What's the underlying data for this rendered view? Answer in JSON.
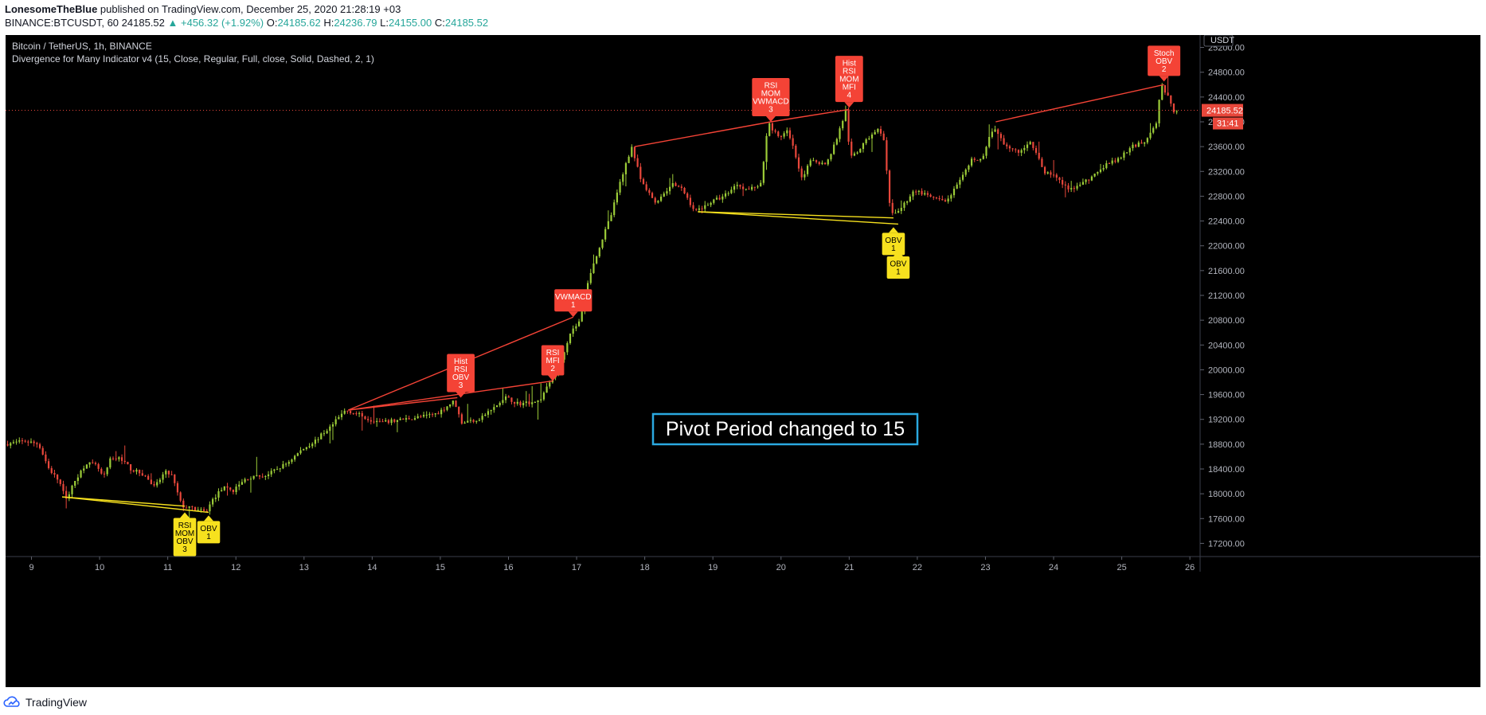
{
  "header": {
    "author": "LonesomeTheBlue",
    "published": "published on TradingView.com, December 25, 2020 21:28:19 +03",
    "symbol_line": "BINANCE:BTCUSDT, 60",
    "last_price": "24185.52",
    "change": "▲ +456.32 (+1.92%)",
    "open_label": "O:",
    "open": "24185.62",
    "high_label": "H:",
    "high": "24236.79",
    "low_label": "L:",
    "low": "24155.00",
    "close_label": "C:",
    "close": "24185.52"
  },
  "legend": {
    "title": "Bitcoin / TetherUS, 1h, BINANCE",
    "indicator": "Divergence for Many Indicator v4 (15, Close, Regular, Full, close, Solid, Dashed, 2, 1)"
  },
  "footer": {
    "brand": "TradingView"
  },
  "overlay": {
    "text": "Pivot Period changed to 15"
  },
  "colors": {
    "up": "#9ccc38",
    "down": "#e8473b",
    "bear_line": "#f44336",
    "bull_line": "#f7e11e",
    "bear_label": "#f44336",
    "bull_label": "#f7e11e",
    "overlay_border": "#2ba9e0"
  },
  "chart_data": {
    "type": "candlestick",
    "quote_currency": "USDT",
    "last_price": "24185.52",
    "countdown": "31:41",
    "y_ticks": [
      "25200.00",
      "24800.00",
      "24400.00",
      "24000.00",
      "23600.00",
      "23200.00",
      "22800.00",
      "22400.00",
      "22000.00",
      "21600.00",
      "21200.00",
      "20800.00",
      "20400.00",
      "20000.00",
      "19600.00",
      "19200.00",
      "18800.00",
      "18400.00",
      "18000.00",
      "17600.00",
      "17200.00"
    ],
    "ylim": [
      17000,
      25400
    ],
    "x_ticks": [
      "9",
      "10",
      "11",
      "12",
      "13",
      "14",
      "15",
      "16",
      "17",
      "18",
      "19",
      "20",
      "21",
      "22",
      "23",
      "24",
      "25",
      "26"
    ],
    "x_tick_values": [
      9,
      10,
      11,
      12,
      13,
      14,
      15,
      16,
      17,
      18,
      19,
      20,
      21,
      22,
      23,
      24,
      25,
      26
    ],
    "xlim": [
      8.62,
      26.15
    ],
    "price_path": [
      [
        8.65,
        18800
      ],
      [
        8.95,
        18850
      ],
      [
        9.15,
        18800
      ],
      [
        9.3,
        18400
      ],
      [
        9.45,
        18200
      ],
      [
        9.55,
        17900
      ],
      [
        9.7,
        18250
      ],
      [
        9.85,
        18500
      ],
      [
        10.0,
        18450
      ],
      [
        10.1,
        18250
      ],
      [
        10.2,
        18550
      ],
      [
        10.35,
        18580
      ],
      [
        10.5,
        18400
      ],
      [
        10.7,
        18300
      ],
      [
        10.85,
        18100
      ],
      [
        11.0,
        18350
      ],
      [
        11.1,
        18300
      ],
      [
        11.25,
        17800
      ],
      [
        11.45,
        17750
      ],
      [
        11.6,
        17700
      ],
      [
        11.7,
        17900
      ],
      [
        11.85,
        18100
      ],
      [
        12.0,
        18050
      ],
      [
        12.2,
        18250
      ],
      [
        12.5,
        18300
      ],
      [
        12.8,
        18500
      ],
      [
        13.0,
        18700
      ],
      [
        13.2,
        18850
      ],
      [
        13.45,
        19100
      ],
      [
        13.65,
        19350
      ],
      [
        13.8,
        19300
      ],
      [
        14.0,
        19200
      ],
      [
        14.2,
        19150
      ],
      [
        14.5,
        19200
      ],
      [
        14.8,
        19250
      ],
      [
        15.0,
        19300
      ],
      [
        15.25,
        19500
      ],
      [
        15.35,
        19150
      ],
      [
        15.6,
        19200
      ],
      [
        15.85,
        19400
      ],
      [
        16.0,
        19550
      ],
      [
        16.2,
        19450
      ],
      [
        16.5,
        19500
      ],
      [
        16.65,
        19800
      ],
      [
        16.8,
        20100
      ],
      [
        16.95,
        20600
      ],
      [
        17.1,
        20800
      ],
      [
        17.2,
        21400
      ],
      [
        17.35,
        21900
      ],
      [
        17.55,
        22500
      ],
      [
        17.7,
        23100
      ],
      [
        17.85,
        23600
      ],
      [
        18.0,
        23000
      ],
      [
        18.2,
        22700
      ],
      [
        18.45,
        23000
      ],
      [
        18.6,
        22900
      ],
      [
        18.78,
        22550
      ],
      [
        19.0,
        22700
      ],
      [
        19.2,
        22800
      ],
      [
        19.4,
        23000
      ],
      [
        19.55,
        22900
      ],
      [
        19.75,
        23000
      ],
      [
        19.85,
        24000
      ],
      [
        20.0,
        23750
      ],
      [
        20.15,
        23850
      ],
      [
        20.35,
        23100
      ],
      [
        20.5,
        23400
      ],
      [
        20.7,
        23300
      ],
      [
        20.85,
        23700
      ],
      [
        21.0,
        24200
      ],
      [
        21.05,
        23400
      ],
      [
        21.15,
        23500
      ],
      [
        21.3,
        23700
      ],
      [
        21.45,
        23900
      ],
      [
        21.55,
        23700
      ],
      [
        21.65,
        22500
      ],
      [
        21.8,
        22600
      ],
      [
        22.0,
        22900
      ],
      [
        22.2,
        22800
      ],
      [
        22.45,
        22700
      ],
      [
        22.65,
        23000
      ],
      [
        22.85,
        23400
      ],
      [
        23.0,
        23400
      ],
      [
        23.15,
        23900
      ],
      [
        23.35,
        23600
      ],
      [
        23.55,
        23500
      ],
      [
        23.7,
        23700
      ],
      [
        23.9,
        23200
      ],
      [
        24.1,
        23100
      ],
      [
        24.25,
        22900
      ],
      [
        24.45,
        23000
      ],
      [
        24.6,
        23100
      ],
      [
        24.8,
        23300
      ],
      [
        25.0,
        23400
      ],
      [
        25.2,
        23600
      ],
      [
        25.4,
        23700
      ],
      [
        25.55,
        24000
      ],
      [
        25.62,
        24600
      ],
      [
        25.72,
        24400
      ],
      [
        25.82,
        24150
      ],
      [
        25.85,
        24185
      ]
    ],
    "divergence_lines": [
      {
        "kind": "bearish",
        "from": [
          17.85,
          23600
        ],
        "to": [
          19.85,
          24000
        ]
      },
      {
        "kind": "bearish",
        "from": [
          19.85,
          24000
        ],
        "to": [
          21.0,
          24200
        ]
      },
      {
        "kind": "bearish",
        "from": [
          23.15,
          24000
        ],
        "to": [
          25.62,
          24600
        ]
      },
      {
        "kind": "bearish",
        "from": [
          13.65,
          19350
        ],
        "to": [
          16.95,
          20850
        ]
      },
      {
        "kind": "bearish",
        "from": [
          13.65,
          19350
        ],
        "to": [
          15.25,
          19550
        ]
      },
      {
        "kind": "bearish",
        "from": [
          13.65,
          19350
        ],
        "to": [
          16.65,
          19820
        ]
      },
      {
        "kind": "bullish",
        "from": [
          9.45,
          17950
        ],
        "to": [
          11.25,
          17800
        ]
      },
      {
        "kind": "bullish",
        "from": [
          9.45,
          17950
        ],
        "to": [
          11.6,
          17700
        ]
      },
      {
        "kind": "bullish",
        "from": [
          18.78,
          22550
        ],
        "to": [
          21.65,
          22450
        ]
      },
      {
        "kind": "bullish",
        "from": [
          18.78,
          22550
        ],
        "to": [
          21.72,
          22350
        ]
      }
    ],
    "labels": [
      {
        "kind": "bearish",
        "x": 19.85,
        "y": 24000,
        "lines": [
          "RSI",
          "MOM",
          "VWMACD",
          "3"
        ]
      },
      {
        "kind": "bearish",
        "x": 21.0,
        "y": 24230,
        "lines": [
          "Hist",
          "RSI",
          "MOM",
          "MFI",
          "4"
        ]
      },
      {
        "kind": "bearish",
        "x": 25.62,
        "y": 24650,
        "lines": [
          "Stoch",
          "OBV",
          "2"
        ]
      },
      {
        "kind": "bearish",
        "x": 16.95,
        "y": 20850,
        "lines": [
          "VWMACD",
          "1"
        ]
      },
      {
        "kind": "bearish",
        "x": 16.65,
        "y": 19820,
        "lines": [
          "RSI",
          "MFI",
          "2"
        ]
      },
      {
        "kind": "bearish",
        "x": 15.3,
        "y": 19550,
        "lines": [
          "Hist",
          "RSI",
          "OBV",
          "3"
        ]
      },
      {
        "kind": "bullish",
        "x": 11.25,
        "y": 17700,
        "lines": [
          "RSI",
          "MOM",
          "OBV",
          "3"
        ]
      },
      {
        "kind": "bullish",
        "x": 11.6,
        "y": 17650,
        "lines": [
          "OBV",
          "1"
        ]
      },
      {
        "kind": "bullish",
        "x": 21.65,
        "y": 22300,
        "lines": [
          "OBV",
          "1"
        ]
      },
      {
        "kind": "bullish",
        "x": 21.72,
        "y": 21920,
        "lines": [
          "OBV",
          "1"
        ]
      }
    ]
  }
}
